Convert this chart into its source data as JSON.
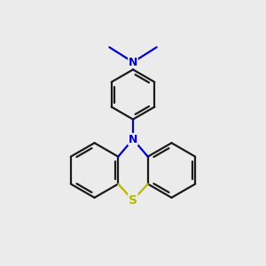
{
  "bg_color": "#ebebeb",
  "bond_color": "#1a1a1a",
  "N_color": "#0000cc",
  "S_color": "#b8b800",
  "linewidth": 1.6,
  "figsize": [
    3.0,
    3.0
  ],
  "dpi": 100,
  "xlim": [
    0,
    10
  ],
  "ylim": [
    0,
    10.5
  ]
}
